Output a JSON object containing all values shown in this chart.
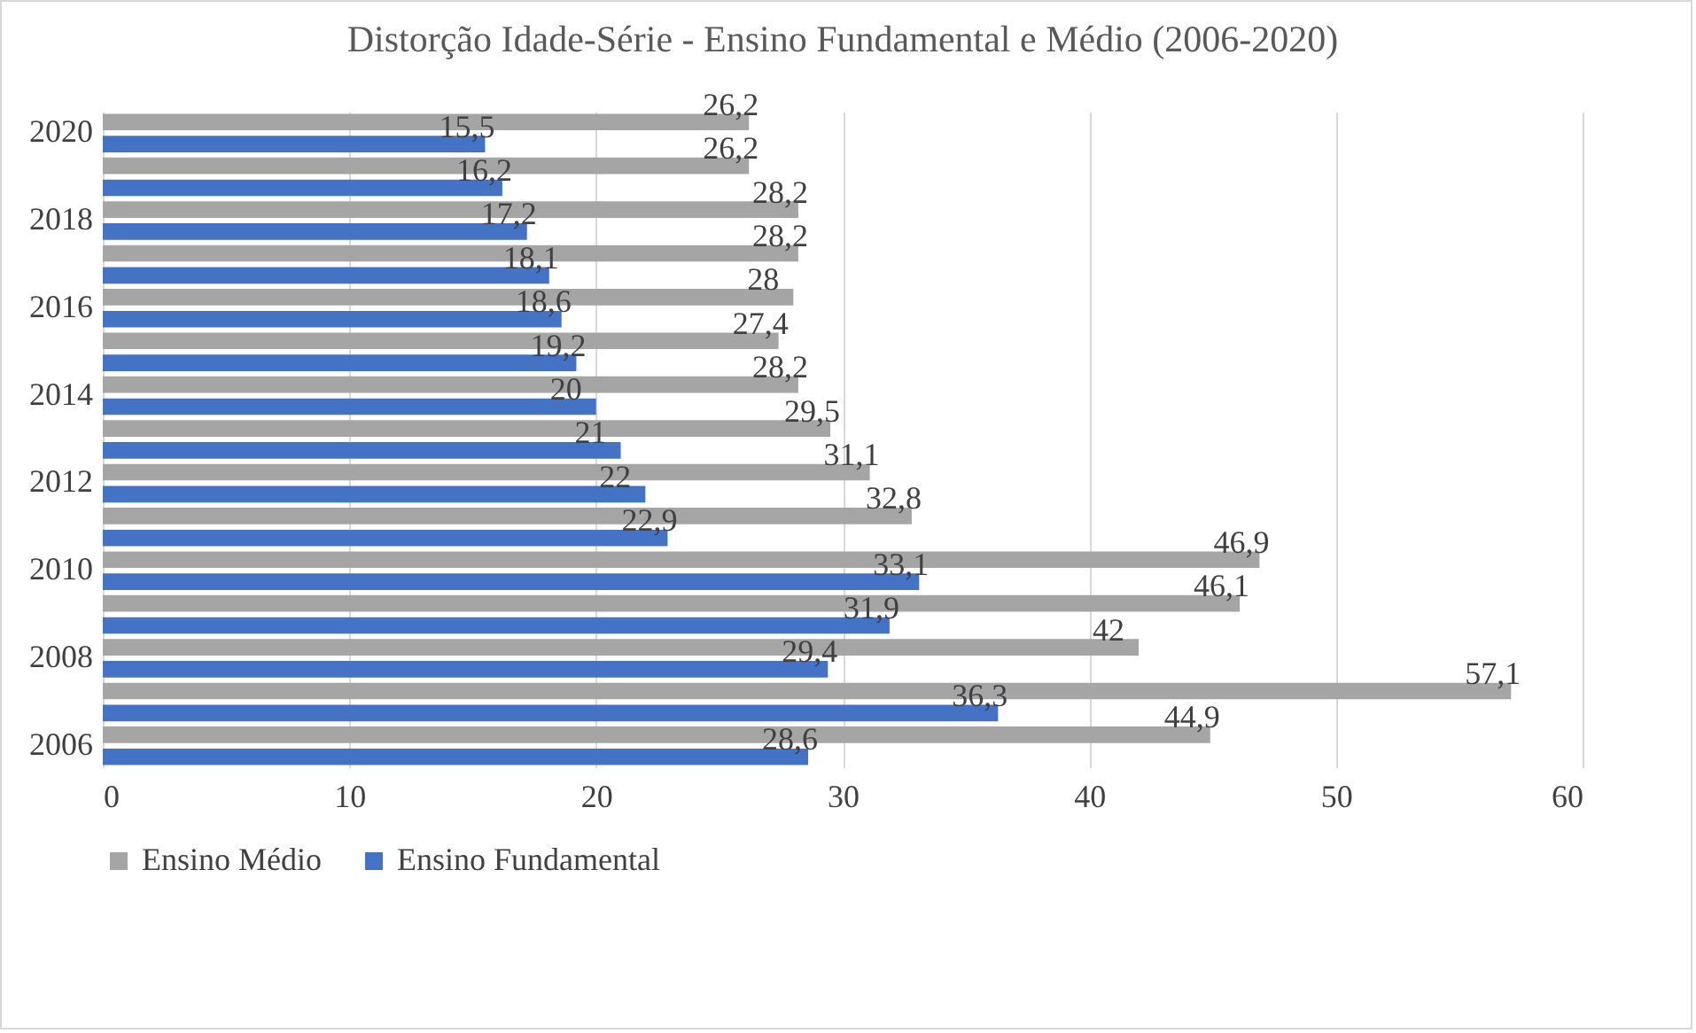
{
  "chart_data": {
    "type": "bar",
    "orientation": "horizontal",
    "title": "Distorção Idade-Série - Ensino Fundamental e Médio (2006-2020)",
    "categories": [
      "2020",
      null,
      "2018",
      null,
      "2016",
      null,
      "2014",
      null,
      "2012",
      null,
      "2010",
      null,
      "2008",
      null,
      "2006"
    ],
    "series": [
      {
        "name": "Ensino Médio",
        "color": "#a5a5a5",
        "values": [
          26.2,
          26.2,
          28.2,
          28.2,
          28,
          27.4,
          28.2,
          29.5,
          31.1,
          32.8,
          46.9,
          46.1,
          42,
          57.1,
          44.9
        ],
        "value_labels": [
          "26,2",
          "26,2",
          "28,2",
          "28,2",
          "28",
          "27,4",
          "28,2",
          "29,5",
          "31,1",
          "32,8",
          "46,9",
          "46,1",
          "42",
          "57,1",
          "44,9"
        ]
      },
      {
        "name": "Ensino Fundamental",
        "color": "#4472c4",
        "values": [
          15.5,
          16.2,
          17.2,
          18.1,
          18.6,
          19.2,
          20,
          21,
          22,
          22.9,
          33.1,
          31.9,
          29.4,
          36.3,
          28.6
        ],
        "value_labels": [
          "15,5",
          "16,2",
          "17,2",
          "18,1",
          "18,6",
          "19,2",
          "20",
          "21",
          "22",
          "22,9",
          "33,1",
          "31,9",
          "29,4",
          "36,3",
          "28,6"
        ]
      }
    ],
    "xlim": [
      0,
      60
    ],
    "xticks": [
      0,
      10,
      20,
      30,
      40,
      50,
      60
    ],
    "grid": "x",
    "legend": "bottom"
  }
}
